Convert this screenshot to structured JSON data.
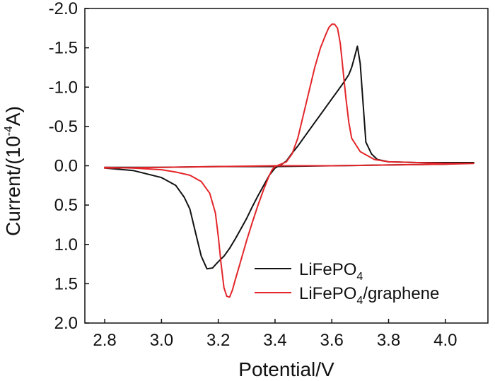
{
  "chart_data": {
    "type": "line",
    "title": "",
    "xlabel": "Potential/V",
    "ylabel_parts": [
      "Current/(10",
      "-4",
      "A)"
    ],
    "xlim": [
      2.73,
      4.15
    ],
    "ylim": [
      -2.0,
      2.0
    ],
    "y_inverted": true,
    "x_ticks": [
      2.8,
      3.0,
      3.2,
      3.4,
      3.6,
      3.8,
      4.0
    ],
    "x_tick_labels": [
      "2.8",
      "3.0",
      "3.2",
      "3.4",
      "3.6",
      "3.8",
      "4.0"
    ],
    "y_ticks": [
      -2.0,
      -1.5,
      -1.0,
      -0.5,
      0.0,
      0.5,
      1.0,
      1.5,
      2.0
    ],
    "y_tick_labels": [
      "-2.0",
      "-1.5",
      "-1.0",
      "-0.5",
      "0.0",
      "0.5",
      "1.0",
      "1.5",
      "2.0"
    ],
    "legend_position": "bottom-right",
    "series": [
      {
        "name": "LiFePO4",
        "legend_main": "LiFePO",
        "legend_sub": "4",
        "legend_suffix": "",
        "color": "#111111",
        "x": [
          2.8,
          2.9,
          3.0,
          3.05,
          3.08,
          3.1,
          3.12,
          3.14,
          3.16,
          3.18,
          3.2,
          3.22,
          3.24,
          3.26,
          3.28,
          3.3,
          3.32,
          3.34,
          3.36,
          3.38,
          3.4,
          3.42,
          3.44,
          3.46,
          3.48,
          3.5,
          3.52,
          3.54,
          3.56,
          3.58,
          3.6,
          3.62,
          3.64,
          3.66,
          3.67,
          3.68,
          3.69,
          3.7,
          3.71,
          3.72,
          3.74,
          3.76,
          3.8,
          3.9,
          4.0,
          4.1,
          4.0,
          3.8,
          3.6,
          3.4,
          3.2,
          3.0,
          2.8
        ],
        "y": [
          0.03,
          0.06,
          0.15,
          0.25,
          0.4,
          0.55,
          0.85,
          1.15,
          1.31,
          1.3,
          1.22,
          1.15,
          1.05,
          0.93,
          0.8,
          0.67,
          0.52,
          0.38,
          0.25,
          0.12,
          0.03,
          -0.01,
          -0.06,
          -0.16,
          -0.25,
          -0.35,
          -0.45,
          -0.55,
          -0.65,
          -0.75,
          -0.85,
          -0.95,
          -1.05,
          -1.16,
          -1.25,
          -1.38,
          -1.52,
          -1.3,
          -0.8,
          -0.3,
          -0.15,
          -0.08,
          -0.05,
          -0.04,
          -0.04,
          -0.04,
          -0.02,
          -0.01,
          0.0,
          0.01,
          0.01,
          0.02,
          0.02
        ]
      },
      {
        "name": "LiFePO4/graphene",
        "legend_main": "LiFePO",
        "legend_sub": "4",
        "legend_suffix": "/graphene",
        "color": "#e3262a",
        "x": [
          2.8,
          2.9,
          3.0,
          3.05,
          3.1,
          3.14,
          3.17,
          3.19,
          3.2,
          3.21,
          3.22,
          3.23,
          3.24,
          3.25,
          3.26,
          3.28,
          3.3,
          3.32,
          3.34,
          3.36,
          3.38,
          3.39,
          3.4,
          3.42,
          3.44,
          3.46,
          3.48,
          3.5,
          3.52,
          3.54,
          3.56,
          3.58,
          3.59,
          3.6,
          3.61,
          3.62,
          3.63,
          3.64,
          3.65,
          3.66,
          3.67,
          3.7,
          3.75,
          3.8,
          3.9,
          4.0,
          4.1,
          4.0,
          3.8,
          3.6,
          3.4,
          3.2,
          3.0,
          2.8
        ],
        "y": [
          0.02,
          0.03,
          0.05,
          0.08,
          0.12,
          0.2,
          0.35,
          0.6,
          0.9,
          1.25,
          1.55,
          1.66,
          1.67,
          1.58,
          1.45,
          1.2,
          0.95,
          0.72,
          0.5,
          0.3,
          0.12,
          0.05,
          0.01,
          -0.02,
          -0.05,
          -0.15,
          -0.35,
          -0.65,
          -0.95,
          -1.25,
          -1.5,
          -1.68,
          -1.76,
          -1.8,
          -1.8,
          -1.75,
          -1.55,
          -1.2,
          -0.85,
          -0.55,
          -0.35,
          -0.18,
          -0.08,
          -0.05,
          -0.04,
          -0.03,
          -0.03,
          -0.02,
          -0.01,
          0.0,
          0.0,
          0.01,
          0.02,
          0.03
        ]
      }
    ]
  }
}
